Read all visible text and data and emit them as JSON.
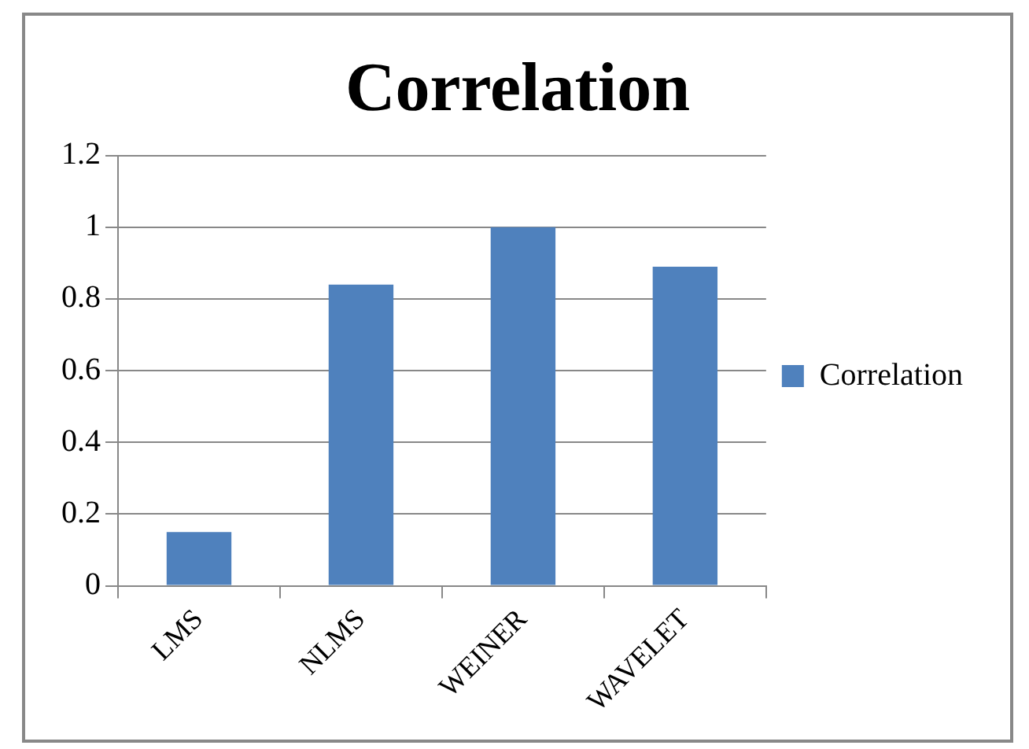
{
  "chart_data": {
    "type": "bar",
    "title": "Correlation",
    "categories": [
      "LMS",
      "NLMS",
      "WEINER",
      "WAVELET"
    ],
    "series": [
      {
        "name": "Correlation",
        "color": "#4f81bd",
        "values": [
          0.15,
          0.84,
          1.0,
          0.89
        ]
      }
    ],
    "ylim": [
      0,
      1.2
    ],
    "yticks": [
      0,
      0.2,
      0.4,
      0.6,
      0.8,
      1,
      1.2
    ],
    "grid": "y",
    "legend": "right"
  }
}
